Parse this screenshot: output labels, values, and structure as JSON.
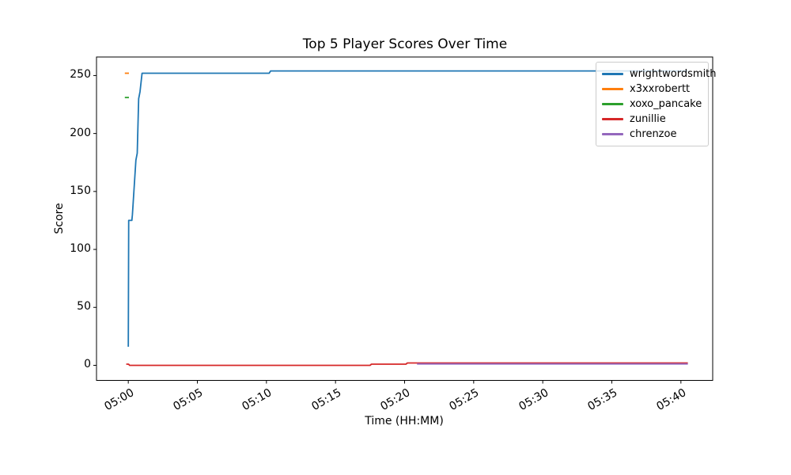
{
  "figure": {
    "background": "#ffffff"
  },
  "chart_data": {
    "type": "line",
    "title": "Top 5 Player Scores Over Time",
    "xlabel": "Time (HH:MM)",
    "ylabel": "Score",
    "legend_position": "upper right",
    "x_tick_rotation_deg": 30,
    "grid": false,
    "xlim_minutes": [
      -2.3,
      42.3
    ],
    "ylim": [
      -13,
      266
    ],
    "x_ticks": [
      {
        "minutes": 0,
        "label": "05:00"
      },
      {
        "minutes": 5,
        "label": "05:05"
      },
      {
        "minutes": 10,
        "label": "05:10"
      },
      {
        "minutes": 15,
        "label": "05:15"
      },
      {
        "minutes": 20,
        "label": "05:20"
      },
      {
        "minutes": 25,
        "label": "05:25"
      },
      {
        "minutes": 30,
        "label": "05:30"
      },
      {
        "minutes": 35,
        "label": "05:35"
      },
      {
        "minutes": 40,
        "label": "05:40"
      }
    ],
    "y_ticks": [
      0,
      50,
      100,
      150,
      200,
      250
    ],
    "series": [
      {
        "name": "wrightwordsmith",
        "color": "#1f77b4",
        "points_min_score": [
          [
            0,
            16
          ],
          [
            0.03,
            125
          ],
          [
            0.26,
            125
          ],
          [
            0.3,
            130
          ],
          [
            0.55,
            177
          ],
          [
            0.65,
            183
          ],
          [
            0.75,
            230
          ],
          [
            0.85,
            236
          ],
          [
            1.0,
            252
          ],
          [
            10.2,
            252
          ],
          [
            10.3,
            254
          ],
          [
            40.5,
            254
          ]
        ]
      },
      {
        "name": "x3xxrobertt",
        "color": "#ff7f0e",
        "points_min_score": [
          [
            -0.25,
            252
          ],
          [
            0.05,
            252
          ]
        ]
      },
      {
        "name": "xoxo_pancake",
        "color": "#2ca02c",
        "points_min_score": [
          [
            -0.25,
            231
          ],
          [
            0.05,
            231
          ]
        ]
      },
      {
        "name": "zunillie",
        "color": "#d62728",
        "points_min_score": [
          [
            -0.15,
            1
          ],
          [
            0.02,
            1
          ],
          [
            0.1,
            0
          ],
          [
            17.5,
            0
          ],
          [
            17.6,
            1
          ],
          [
            20.1,
            1
          ],
          [
            20.2,
            2
          ],
          [
            40.5,
            2
          ]
        ]
      },
      {
        "name": "chrenzoe",
        "color": "#9467bd",
        "points_min_score": [
          [
            20.9,
            1.2
          ],
          [
            40.5,
            1.2
          ]
        ]
      }
    ]
  }
}
